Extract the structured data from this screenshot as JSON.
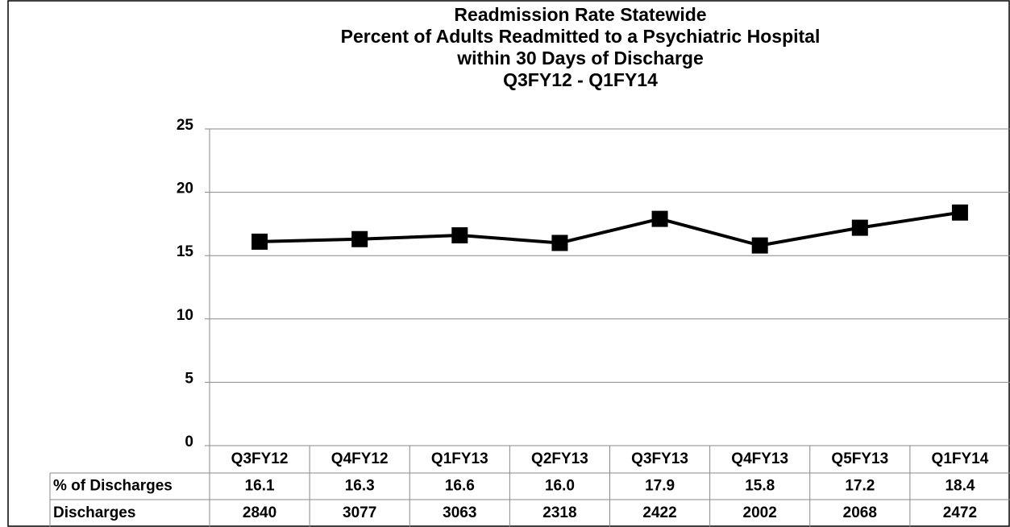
{
  "chart_data": {
    "type": "line",
    "title": [
      "Readmission Rate Statewide",
      "Percent of Adults Readmitted to a Psychiatric Hospital",
      "within 30 Days of Discharge",
      "Q3FY12 - Q1FY14"
    ],
    "categories": [
      "Q3FY12",
      "Q4FY12",
      "Q1FY13",
      "Q2FY13",
      "Q3FY13",
      "Q4FY13",
      "Q5FY13",
      "Q1FY14"
    ],
    "series": [
      {
        "name": "% of Discharges",
        "color": "#000000",
        "values": [
          16.1,
          16.3,
          16.6,
          16.0,
          17.9,
          15.8,
          17.2,
          18.4
        ],
        "value_labels": [
          "16.1",
          "16.3",
          "16.6",
          "16.0",
          "17.9",
          "15.8",
          "17.2",
          "18.4"
        ]
      }
    ],
    "discharges": {
      "name": "Discharges",
      "values": [
        2840,
        3077,
        3063,
        2318,
        2422,
        2002,
        2068,
        2472
      ]
    },
    "ylim": [
      0,
      25
    ],
    "yticks": [
      0,
      5,
      10,
      15,
      20,
      25
    ],
    "grid": true
  }
}
